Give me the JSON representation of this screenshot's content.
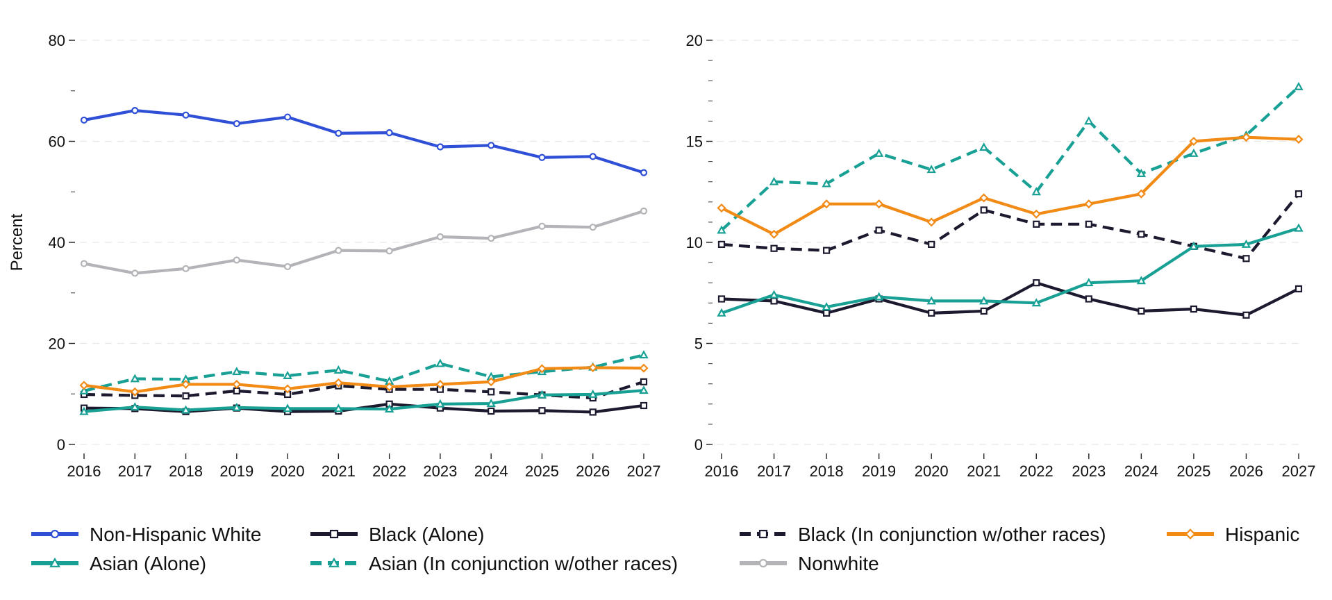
{
  "chart_data": [
    {
      "type": "line",
      "ylabel": "Percent",
      "xlabel": "",
      "ylim": [
        0,
        80
      ],
      "yticks": [
        0,
        20,
        40,
        60,
        80
      ],
      "yminor_ticks": [
        10,
        30,
        50,
        70
      ],
      "x": [
        "2016",
        "2017",
        "2018",
        "2019",
        "2020",
        "2021",
        "2022",
        "2023",
        "2024",
        "2025",
        "2026",
        "2027"
      ],
      "grid": "horizontal",
      "series": [
        {
          "name": "Non-Hispanic White",
          "values": [
            64.2,
            66.1,
            65.2,
            63.5,
            64.8,
            61.6,
            61.7,
            58.9,
            59.2,
            56.8,
            57.0,
            53.8
          ]
        },
        {
          "name": "Nonwhite",
          "values": [
            35.8,
            33.9,
            34.8,
            36.5,
            35.2,
            38.4,
            38.3,
            41.1,
            40.8,
            43.2,
            43.0,
            46.2
          ]
        },
        {
          "name": "Black (Alone)",
          "values": [
            7.2,
            7.1,
            6.5,
            7.2,
            6.5,
            6.6,
            8.0,
            7.2,
            6.6,
            6.7,
            6.4,
            7.7
          ]
        },
        {
          "name": "Black (In conjunction w/other races)",
          "values": [
            9.9,
            9.7,
            9.6,
            10.6,
            9.9,
            11.6,
            10.9,
            10.9,
            10.4,
            9.8,
            9.2,
            12.4
          ]
        },
        {
          "name": "Asian (Alone)",
          "values": [
            6.5,
            7.4,
            6.8,
            7.3,
            7.1,
            7.1,
            7.0,
            8.0,
            8.1,
            9.8,
            9.9,
            10.7
          ]
        },
        {
          "name": "Asian (In conjunction w/other races)",
          "values": [
            10.6,
            13.0,
            12.9,
            14.4,
            13.6,
            14.7,
            12.5,
            16.0,
            13.4,
            14.4,
            15.3,
            17.7
          ]
        },
        {
          "name": "Hispanic",
          "values": [
            11.7,
            10.4,
            11.9,
            11.9,
            11.0,
            12.2,
            11.4,
            11.9,
            12.4,
            15.0,
            15.2,
            15.1
          ]
        }
      ]
    },
    {
      "type": "line",
      "ylabel": "",
      "xlabel": "",
      "ylim": [
        0,
        20
      ],
      "yticks": [
        0,
        5,
        10,
        15,
        20
      ],
      "yminor_ticks": [
        1,
        2,
        3,
        4,
        6,
        7,
        8,
        9,
        11,
        12,
        13,
        14,
        16,
        17,
        18,
        19
      ],
      "x": [
        "2016",
        "2017",
        "2018",
        "2019",
        "2020",
        "2021",
        "2022",
        "2023",
        "2024",
        "2025",
        "2026",
        "2027"
      ],
      "grid": "horizontal",
      "series": [
        {
          "name": "Black (Alone)",
          "values": [
            7.2,
            7.1,
            6.5,
            7.2,
            6.5,
            6.6,
            8.0,
            7.2,
            6.6,
            6.7,
            6.4,
            7.7
          ]
        },
        {
          "name": "Black (In conjunction w/other races)",
          "values": [
            9.9,
            9.7,
            9.6,
            10.6,
            9.9,
            11.6,
            10.9,
            10.9,
            10.4,
            9.8,
            9.2,
            12.4
          ]
        },
        {
          "name": "Asian (Alone)",
          "values": [
            6.5,
            7.4,
            6.8,
            7.3,
            7.1,
            7.1,
            7.0,
            8.0,
            8.1,
            9.8,
            9.9,
            10.7
          ]
        },
        {
          "name": "Asian (In conjunction w/other races)",
          "values": [
            10.6,
            13.0,
            12.9,
            14.4,
            13.6,
            14.7,
            12.5,
            16.0,
            13.4,
            14.4,
            15.3,
            17.7
          ]
        },
        {
          "name": "Hispanic",
          "values": [
            11.7,
            10.4,
            11.9,
            11.9,
            11.0,
            12.2,
            11.4,
            11.9,
            12.4,
            15.0,
            15.2,
            15.1
          ]
        }
      ]
    }
  ],
  "legend": {
    "placement": "bottom",
    "items": [
      {
        "name": "Non-Hispanic White",
        "color": "#2f4fd6",
        "marker": "circle",
        "dash": "solid"
      },
      {
        "name": "Black (Alone)",
        "color": "#1c1a2e",
        "marker": "square",
        "dash": "solid"
      },
      {
        "name": "Black (In conjunction w/other races)",
        "color": "#1c1a2e",
        "marker": "square",
        "dash": "dashed"
      },
      {
        "name": "Hispanic",
        "color": "#f28a16",
        "marker": "diamond",
        "dash": "solid"
      },
      {
        "name": "Asian (Alone)",
        "color": "#18a095",
        "marker": "triangle",
        "dash": "solid"
      },
      {
        "name": "Asian (In conjunction w/other races)",
        "color": "#18a095",
        "marker": "triangle",
        "dash": "dashed"
      },
      {
        "name": "Nonwhite",
        "color": "#b4b4b8",
        "marker": "circle",
        "dash": "solid"
      }
    ]
  }
}
